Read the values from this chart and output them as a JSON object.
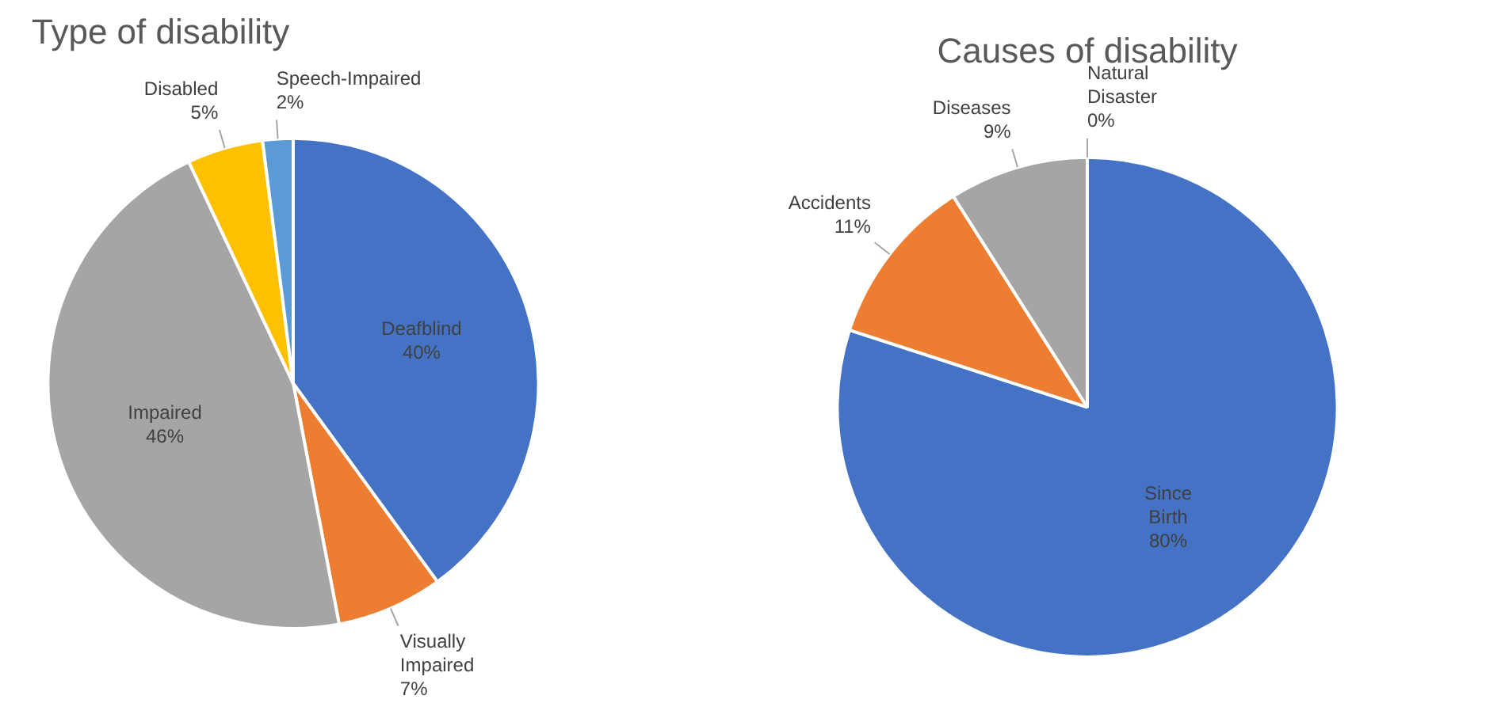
{
  "chart_data": [
    {
      "type": "pie",
      "title": "Type of disability",
      "categories": [
        "Deafblind",
        "Visually Impaired",
        "Impaired",
        "Disabled",
        "Speech-Impaired"
      ],
      "values": [
        40,
        7,
        46,
        5,
        2
      ],
      "value_labels": [
        "40%",
        "7%",
        "46%",
        "5%",
        "2%"
      ],
      "colors": [
        "#4472c4",
        "#ed7d31",
        "#a5a5a5",
        "#ffc000",
        "#5b9bd5"
      ]
    },
    {
      "type": "pie",
      "title": "Causes of disability",
      "categories": [
        "Since Birth",
        "Accidents",
        "Diseases",
        "Natural Disaster"
      ],
      "values": [
        80,
        11,
        9,
        0
      ],
      "value_labels": [
        "80%",
        "11%",
        "9%",
        "0%"
      ],
      "colors": [
        "#4472c4",
        "#ed7d31",
        "#a5a5a5",
        "#ffc000"
      ]
    }
  ]
}
